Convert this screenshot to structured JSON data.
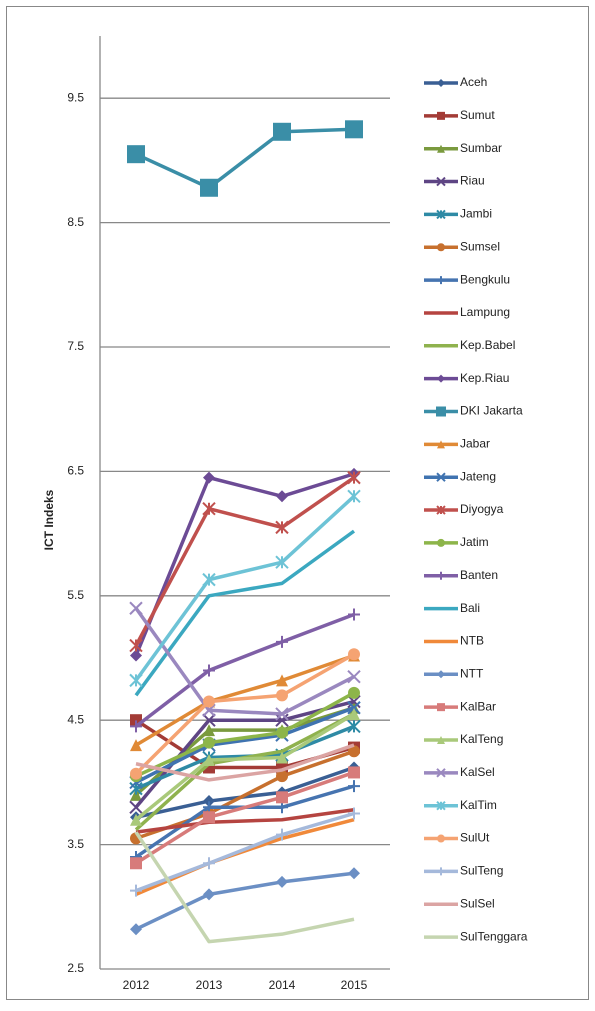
{
  "chart_data": {
    "type": "line",
    "y_label": "ICT Indeks",
    "categories": [
      "2012",
      "2013",
      "2014",
      "2015"
    ],
    "ylim": [
      2.5,
      10
    ],
    "yticks": [
      2.5,
      3.5,
      4.5,
      5.5,
      6.5,
      7.5,
      8.5,
      9.5
    ],
    "grid": true,
    "series": [
      {
        "name": "Aceh",
        "color": "#3a5f94",
        "values": [
          3.72,
          3.85,
          3.92,
          4.12
        ]
      },
      {
        "name": "Sumut",
        "color": "#a33b36",
        "values": [
          4.5,
          4.12,
          4.12,
          4.28
        ]
      },
      {
        "name": "Sumbar",
        "color": "#7a9a3e",
        "values": [
          3.9,
          4.42,
          4.42,
          4.6
        ]
      },
      {
        "name": "Riau",
        "color": "#5e4584",
        "values": [
          3.8,
          4.5,
          4.5,
          4.65
        ]
      },
      {
        "name": "Jambi",
        "color": "#2e8aa5",
        "values": [
          3.95,
          4.2,
          4.22,
          4.45
        ]
      },
      {
        "name": "Sumsel",
        "color": "#c7702e",
        "values": [
          3.55,
          3.75,
          4.05,
          4.25
        ]
      },
      {
        "name": "Bengkulu",
        "color": "#4674b0",
        "values": [
          3.4,
          3.8,
          3.8,
          3.97
        ]
      },
      {
        "name": "Lampung",
        "color": "#b54440",
        "values": [
          3.6,
          3.68,
          3.7,
          3.78
        ]
      },
      {
        "name": "Kep.Babel",
        "color": "#8fb24e",
        "values": [
          3.62,
          4.15,
          4.25,
          4.55
        ]
      },
      {
        "name": "Kep.Riau",
        "color": "#6c4b95",
        "values": [
          5.02,
          6.45,
          6.3,
          6.48
        ]
      },
      {
        "name": "DKI Jakarta",
        "color": "#3a8ea7",
        "values": [
          9.05,
          8.78,
          9.23,
          9.25
        ]
      },
      {
        "name": "Jabar",
        "color": "#e08a36",
        "values": [
          4.3,
          4.65,
          4.82,
          5.02
        ]
      },
      {
        "name": "Jateng",
        "color": "#3f73b0",
        "values": [
          4.0,
          4.3,
          4.38,
          4.6
        ]
      },
      {
        "name": "Diyogya",
        "color": "#c0504d",
        "values": [
          5.1,
          6.2,
          6.05,
          6.45
        ]
      },
      {
        "name": "Jatim",
        "color": "#8db54a",
        "values": [
          4.05,
          4.32,
          4.4,
          4.72
        ]
      },
      {
        "name": "Banten",
        "color": "#7f5fa6",
        "values": [
          4.45,
          4.9,
          5.13,
          5.35
        ]
      },
      {
        "name": "Bali",
        "color": "#3ba8c0",
        "values": [
          4.7,
          5.5,
          5.6,
          6.02
        ]
      },
      {
        "name": "NTB",
        "color": "#f0893a",
        "values": [
          3.1,
          3.35,
          3.55,
          3.7
        ]
      },
      {
        "name": "NTT",
        "color": "#6b8fc4",
        "values": [
          2.82,
          3.1,
          3.2,
          3.27
        ]
      },
      {
        "name": "KalBar",
        "color": "#d77b7a",
        "values": [
          3.35,
          3.72,
          3.88,
          4.08
        ]
      },
      {
        "name": "KalTeng",
        "color": "#a9c97a",
        "values": [
          3.7,
          4.18,
          4.2,
          4.55
        ]
      },
      {
        "name": "KalSel",
        "color": "#9a88bf",
        "values": [
          5.4,
          4.58,
          4.55,
          4.85
        ]
      },
      {
        "name": "KalTim",
        "color": "#6dc3d6",
        "values": [
          4.82,
          5.63,
          5.77,
          6.3
        ]
      },
      {
        "name": "SulUt",
        "color": "#f5a372",
        "values": [
          4.07,
          4.65,
          4.7,
          5.03
        ]
      },
      {
        "name": "SulTeng",
        "color": "#a5b9db",
        "values": [
          3.13,
          3.35,
          3.58,
          3.75
        ]
      },
      {
        "name": "SulSel",
        "color": "#dba4a3",
        "values": [
          4.15,
          4.02,
          4.1,
          4.3
        ]
      },
      {
        "name": "SulTenggara",
        "color": "#c5d5b0",
        "values": [
          3.6,
          2.72,
          2.78,
          2.9
        ]
      }
    ]
  }
}
